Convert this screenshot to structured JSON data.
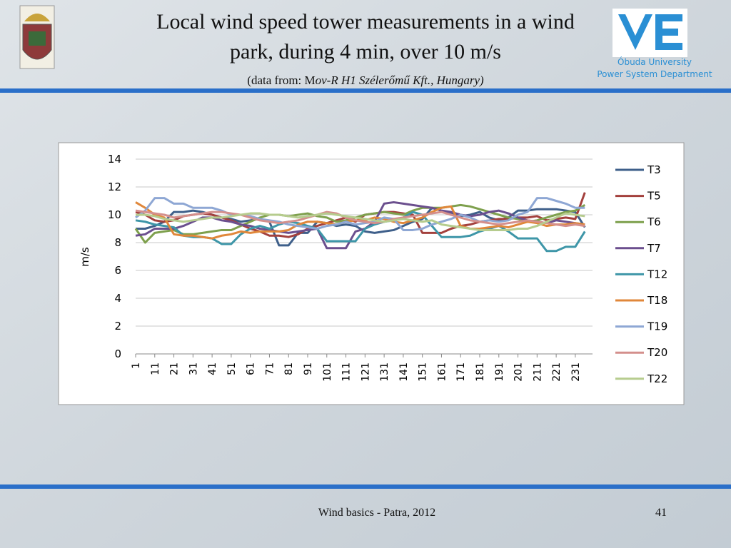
{
  "slide": {
    "title": [
      "Local wind speed tower measurements in a wind",
      "park, during 4 min, over  10 m/s"
    ],
    "subtitle": [
      "(data from: M",
      "ov-R H1 Szélerőmű Kft., Hungary)"
    ],
    "logo_text": [
      "Óbuda University",
      "Power System Department"
    ],
    "footer": "Wind basics - Patra, 2012",
    "page_number": "41"
  },
  "chart_data": {
    "type": "line",
    "y_label": "m/s",
    "xlim": [
      1,
      240
    ],
    "xticks": [
      1,
      11,
      21,
      31,
      41,
      51,
      61,
      71,
      81,
      91,
      101,
      111,
      121,
      131,
      141,
      151,
      161,
      171,
      181,
      191,
      201,
      211,
      221,
      231
    ],
    "ylim": [
      0,
      14
    ],
    "yticks": [
      0,
      2,
      4,
      6,
      8,
      10,
      12,
      14
    ],
    "grid": true,
    "legend": "right",
    "x": [
      1,
      6,
      11,
      16,
      21,
      26,
      31,
      36,
      41,
      46,
      51,
      56,
      61,
      66,
      71,
      76,
      81,
      86,
      91,
      96,
      101,
      106,
      111,
      116,
      121,
      126,
      131,
      136,
      141,
      146,
      151,
      156,
      161,
      166,
      171,
      176,
      181,
      186,
      191,
      196,
      201,
      206,
      211,
      216,
      221,
      226,
      231,
      236
    ],
    "series": [
      {
        "name": "T3",
        "color": "#3e5f8a",
        "values": [
          9,
          9,
          9.2,
          9.5,
          10.2,
          10.2,
          10.3,
          10.2,
          10,
          9.8,
          9.7,
          9.5,
          9.6,
          9.7,
          9.5,
          7.8,
          7.8,
          8.7,
          8.7,
          9.5,
          9.4,
          9.2,
          9.3,
          9.2,
          8.8,
          8.7,
          8.8,
          8.9,
          9.2,
          9.5,
          9.7,
          10.5,
          10.3,
          10.1,
          9.9,
          10,
          10.2,
          9.8,
          9.6,
          9.8,
          10.3,
          10.3,
          10.4,
          10.4,
          10.4,
          10.3,
          10.2,
          9.1
        ]
      },
      {
        "name": "T5",
        "color": "#a3403d",
        "values": [
          10.2,
          10,
          9.6,
          9.5,
          9.6,
          9.9,
          10,
          10.1,
          10,
          9.8,
          9.6,
          9.3,
          9,
          8.8,
          8.5,
          8.5,
          8.4,
          8.6,
          9,
          9.2,
          9.4,
          9.6,
          9.8,
          9.5,
          10,
          10.1,
          10.2,
          10.2,
          10.1,
          10,
          8.7,
          8.7,
          8.7,
          9,
          9.2,
          9.3,
          9.5,
          9.6,
          9.7,
          9.7,
          9.8,
          9.8,
          9.9,
          9.6,
          9.7,
          9.8,
          9.7,
          11.6
        ]
      },
      {
        "name": "T6",
        "color": "#7ea04d",
        "values": [
          9,
          8,
          8.7,
          8.8,
          8.9,
          8.6,
          8.6,
          8.7,
          8.8,
          8.9,
          8.9,
          9.2,
          9.5,
          9.8,
          10,
          10,
          9.9,
          10,
          10.1,
          9.9,
          9.8,
          9.5,
          9.6,
          9.8,
          10,
          10.1,
          10.2,
          10.1,
          10,
          10.3,
          10.5,
          10.5,
          10.5,
          10.6,
          10.7,
          10.6,
          10.4,
          10.2,
          10,
          9.8,
          9.7,
          9.5,
          9.6,
          9.8,
          10,
          10.2,
          10.3,
          10.7
        ]
      },
      {
        "name": "T7",
        "color": "#6b4f8e",
        "values": [
          8.5,
          8.6,
          9,
          9,
          9,
          9.2,
          9.5,
          9.8,
          9.8,
          9.6,
          9.5,
          9.3,
          9.2,
          9,
          8.9,
          8.8,
          8.7,
          8.8,
          8.9,
          9,
          7.6,
          7.6,
          7.6,
          8.8,
          9,
          9.5,
          10.8,
          10.9,
          10.8,
          10.7,
          10.6,
          10.5,
          10.3,
          10.2,
          10,
          9.9,
          10,
          10.2,
          10.3,
          10.1,
          9.8,
          9.6,
          9.5,
          9.4,
          9.6,
          9.5,
          9.4,
          9.3
        ]
      },
      {
        "name": "T12",
        "color": "#3e96a8",
        "values": [
          9.6,
          9.5,
          9.3,
          9.2,
          9.1,
          8.5,
          8.4,
          8.4,
          8.3,
          7.9,
          7.9,
          8.6,
          9,
          9.2,
          9,
          9.3,
          9.5,
          9.4,
          9.2,
          9,
          8.1,
          8.1,
          8.1,
          8.1,
          9,
          9.3,
          9.5,
          9.6,
          9.8,
          10.2,
          10,
          9.2,
          8.4,
          8.4,
          8.4,
          8.5,
          8.8,
          9,
          9.2,
          8.8,
          8.3,
          8.3,
          8.3,
          7.4,
          7.4,
          7.7,
          7.7,
          8.8
        ]
      },
      {
        "name": "T18",
        "color": "#e0873a",
        "values": [
          10.9,
          10.5,
          10,
          9.8,
          8.6,
          8.5,
          8.5,
          8.4,
          8.3,
          8.5,
          8.6,
          8.8,
          8.7,
          8.8,
          8.8,
          8.8,
          8.9,
          9.3,
          9.5,
          9.5,
          9.4,
          9.3,
          9.5,
          9.6,
          9.6,
          9.8,
          9.7,
          9.5,
          9.4,
          9.6,
          9.8,
          10.2,
          10.5,
          10.6,
          9.2,
          9,
          9,
          9.1,
          9.2,
          9.1,
          9.3,
          9.5,
          9.4,
          9.2,
          9.3,
          9.3,
          9.4,
          9.3
        ]
      },
      {
        "name": "T19",
        "color": "#8ea7d4",
        "values": [
          9.8,
          10.3,
          11.2,
          11.2,
          10.8,
          10.8,
          10.5,
          10.5,
          10.5,
          10.3,
          10,
          10,
          9.9,
          9.7,
          9.6,
          9.5,
          9.3,
          9.2,
          9.1,
          9,
          9.2,
          9.3,
          9.5,
          9.3,
          9.4,
          9.5,
          9.8,
          9.7,
          8.9,
          8.9,
          9,
          9.3,
          9.5,
          9.7,
          10,
          9.8,
          9.5,
          9.6,
          9.5,
          9.6,
          10,
          10.2,
          11.2,
          11.2,
          11,
          10.8,
          10.5,
          10.5
        ]
      },
      {
        "name": "T20",
        "color": "#d48f8c",
        "values": [
          10.3,
          10.2,
          10.1,
          10,
          9.8,
          9.9,
          10,
          10.1,
          10.2,
          10.2,
          10.1,
          10,
          9.8,
          9.6,
          9.5,
          9.4,
          9.5,
          9.6,
          9.8,
          10,
          10.2,
          10.1,
          9.8,
          9.6,
          9.5,
          9.4,
          9.5,
          9.7,
          9.8,
          9.9,
          10,
          10.1,
          10.2,
          10,
          9.8,
          9.6,
          9.5,
          9.4,
          9.3,
          9.4,
          9.5,
          9.6,
          9.5,
          9.4,
          9.3,
          9.2,
          9.3,
          9.2
        ]
      },
      {
        "name": "T22",
        "color": "#b6cc8e",
        "values": [
          10,
          10,
          9.9,
          9.7,
          9.6,
          9.5,
          9.6,
          9.7,
          9.8,
          9.8,
          9.9,
          10,
          10.1,
          10.1,
          10,
          10,
          9.9,
          9.8,
          9.9,
          10,
          10.1,
          10,
          9.9,
          9.8,
          9.7,
          9.6,
          9.5,
          9.6,
          9.7,
          9.6,
          9.5,
          9.6,
          9.3,
          9.2,
          9.1,
          9,
          8.9,
          8.9,
          8.9,
          8.9,
          9,
          9,
          9.2,
          9.5,
          9.8,
          10.1,
          10,
          9.9
        ]
      }
    ]
  }
}
